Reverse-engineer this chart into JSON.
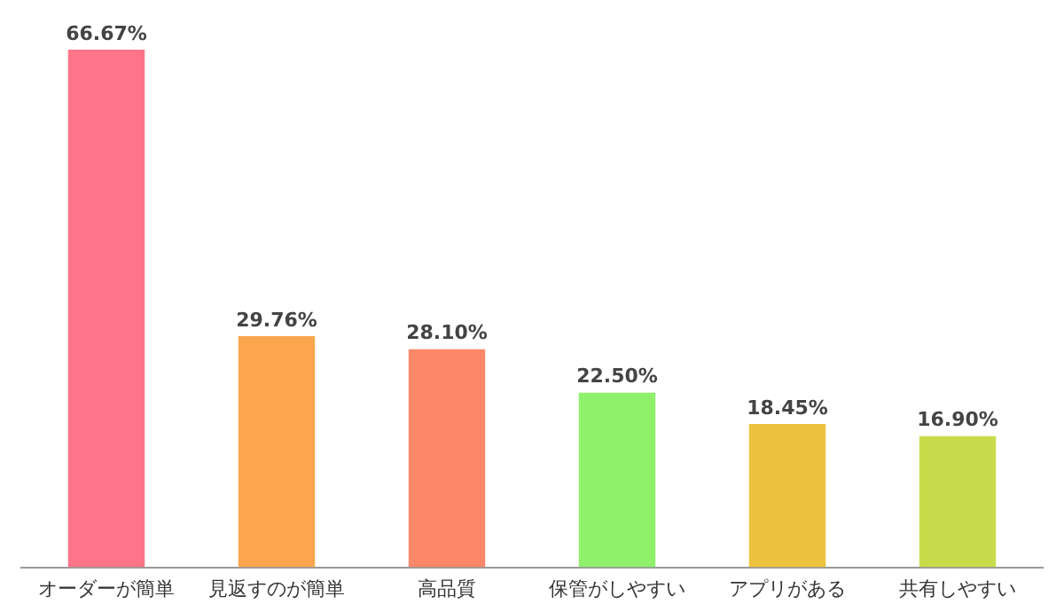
{
  "chart_data": {
    "type": "bar",
    "categories": [
      "オーダーが簡単",
      "見返すのが簡単",
      "高品質",
      "保管がしやすい",
      "アプリがある",
      "共有しやすい"
    ],
    "values": [
      66.67,
      29.76,
      28.1,
      22.5,
      18.45,
      16.9
    ],
    "value_labels": [
      "66.67%",
      "29.76%",
      "28.10%",
      "22.50%",
      "18.45%",
      "16.90%"
    ],
    "colors": [
      "#ff7489",
      "#fba64e",
      "#fd8869",
      "#8ff06b",
      "#ecc23f",
      "#c8dc4b"
    ],
    "grid": false,
    "legend": false,
    "tick_labels": "x"
  }
}
